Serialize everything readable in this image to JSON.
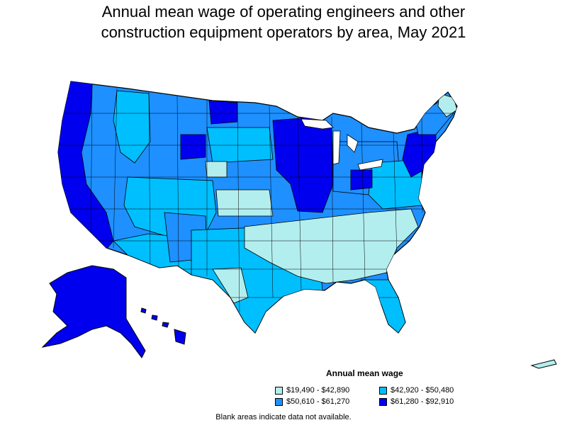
{
  "title_line1": "Annual mean wage of operating engineers and other",
  "title_line2": "construction equipment operators by area, May 2021",
  "legend": {
    "title": "Annual mean wage",
    "items": [
      {
        "label": "$19,490 - $42,890",
        "color": "#b3eeee"
      },
      {
        "label": "$42,920 - $50,480",
        "color": "#00bfff"
      },
      {
        "label": "$50,610 - $61,270",
        "color": "#1e90ff"
      },
      {
        "label": "$61,280 - $92,910",
        "color": "#0000ee"
      }
    ]
  },
  "note": "Blank areas indicate data not available.",
  "colors": {
    "outline": "#000000",
    "low": "#b3eeee",
    "midlow": "#00bfff",
    "midhigh": "#1e90ff",
    "high": "#0000ee"
  }
}
